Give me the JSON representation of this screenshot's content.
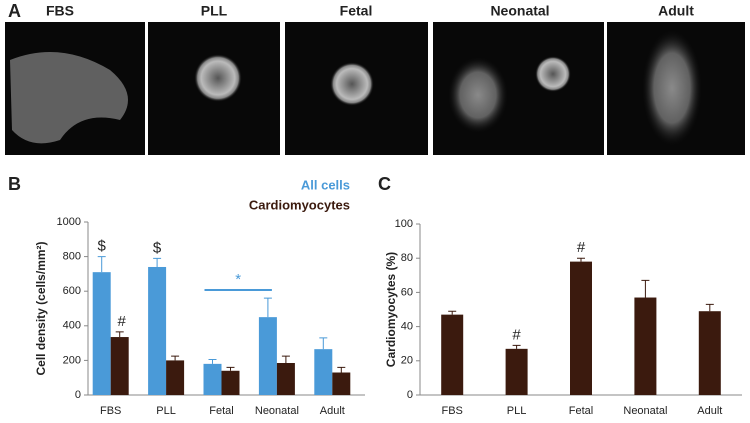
{
  "panel_a": {
    "letter": "A",
    "labels": [
      "FBS",
      "PLL",
      "Fetal",
      "Neonatal",
      "Adult"
    ]
  },
  "chart_data": [
    {
      "type": "bar",
      "letter": "B",
      "y_label": "Cell density (cells/mm²)",
      "categories": [
        "FBS",
        "PLL",
        "Fetal",
        "Neonatal",
        "Adult"
      ],
      "series": [
        {
          "name": "All cells",
          "color": "#4a9ad8",
          "values": [
            710,
            740,
            180,
            450,
            265
          ],
          "errors": [
            90,
            50,
            25,
            110,
            65
          ],
          "markers": [
            "$",
            "$",
            null,
            null,
            null
          ]
        },
        {
          "name": "Cardiomyocytes",
          "color": "#3b1a0e",
          "values": [
            335,
            200,
            140,
            185,
            130
          ],
          "errors": [
            30,
            25,
            20,
            40,
            30
          ],
          "markers": [
            "#",
            null,
            null,
            null,
            null
          ]
        }
      ],
      "annotation": "*",
      "ylim": [
        0,
        1000
      ],
      "yticks": [
        0,
        200,
        400,
        600,
        800,
        1000
      ]
    },
    {
      "type": "bar",
      "letter": "C",
      "y_label": "Cardiomyocytes (%)",
      "categories": [
        "FBS",
        "PLL",
        "Fetal",
        "Neonatal",
        "Adult"
      ],
      "series": [
        {
          "color": "#3b1a0e",
          "values": [
            47,
            27,
            78,
            57,
            49
          ],
          "errors": [
            2,
            2,
            2,
            10,
            4
          ],
          "markers": [
            null,
            "#",
            "#",
            null,
            null
          ]
        }
      ],
      "ylim": [
        0,
        100
      ],
      "yticks": [
        0,
        20,
        40,
        60,
        80,
        100
      ]
    }
  ]
}
